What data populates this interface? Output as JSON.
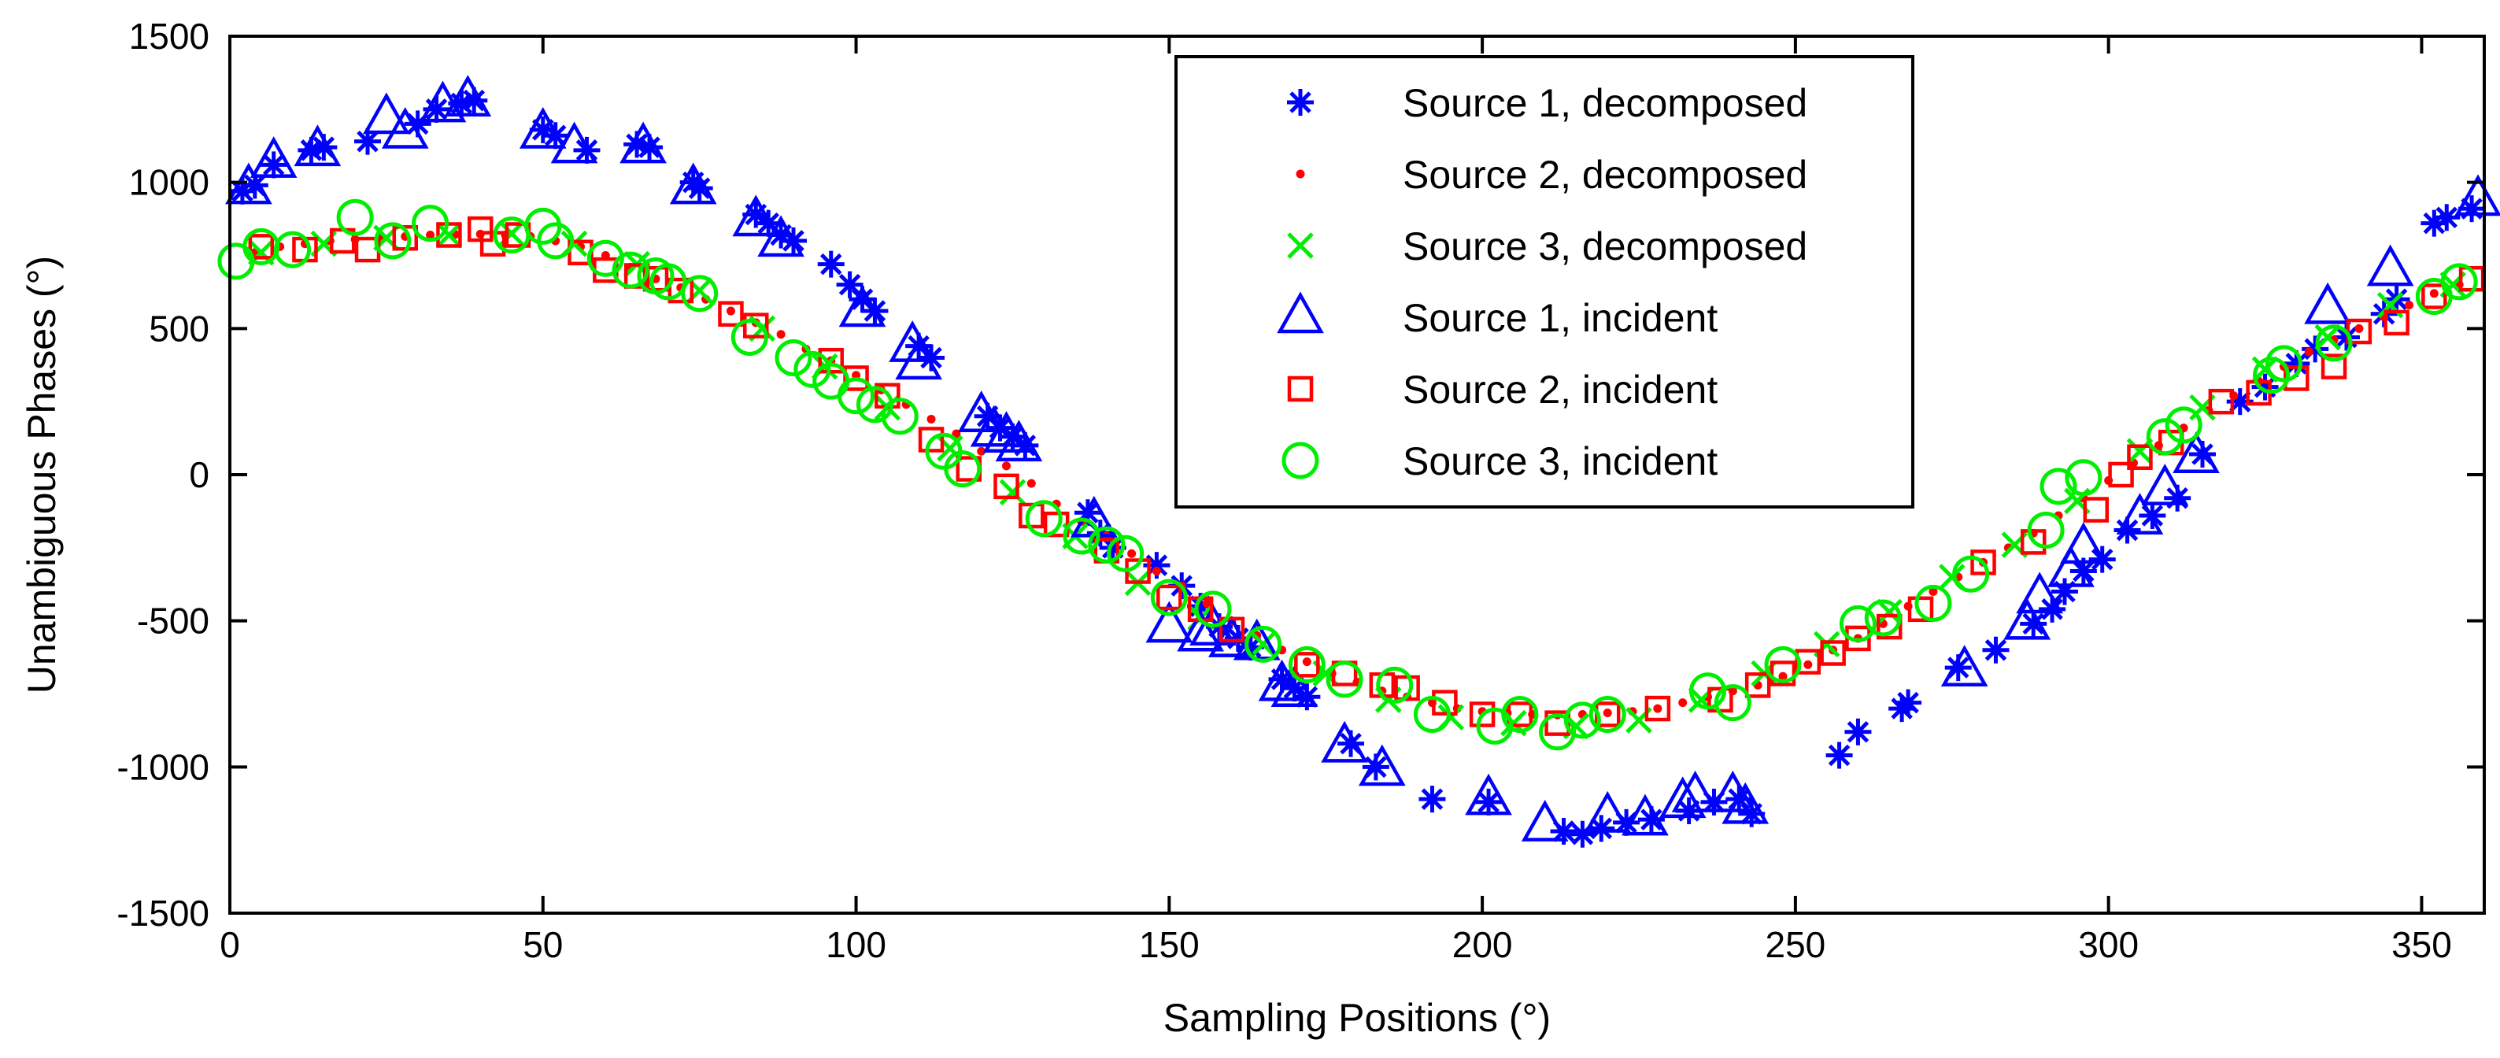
{
  "chart_data": {
    "type": "scatter",
    "title": "",
    "xlabel": "Sampling Positions (°)",
    "ylabel": "Unambiguous Phases (°)",
    "xlim": [
      0,
      360
    ],
    "ylim": [
      -1500,
      1500
    ],
    "xticks": [
      "0",
      "50",
      "100",
      "150",
      "200",
      "250",
      "300",
      "350"
    ],
    "yticks": [
      "1500",
      "1000",
      "500",
      "0",
      "-500",
      "-1000",
      "-1500"
    ],
    "grid": false,
    "legend_position": "top-center",
    "colors": {
      "source1": "#0000ff",
      "source2": "#ff0000",
      "source3": "#00ee00"
    },
    "series": [
      {
        "name": "Source 1, decomposed",
        "marker": "star",
        "color": "#0000ff",
        "x": [
          2,
          4,
          7,
          13,
          15,
          22,
          30,
          33,
          37,
          39,
          50,
          52,
          57,
          65,
          67,
          74,
          75,
          84,
          86,
          88,
          90,
          96,
          99,
          101,
          103,
          110,
          112,
          121,
          123,
          125,
          127,
          137,
          139,
          141,
          148,
          152,
          155,
          158,
          161,
          163,
          168,
          170,
          172,
          179,
          183,
          192,
          201,
          213,
          216,
          219,
          223,
          227,
          233,
          237,
          241,
          243,
          257,
          260,
          267,
          268,
          276,
          282,
          288,
          291,
          293,
          296,
          299,
          303,
          307,
          311,
          315,
          321,
          325,
          330,
          333,
          338,
          344,
          346,
          352,
          354,
          358
        ],
        "y": [
          970,
          990,
          1060,
          1110,
          1120,
          1140,
          1200,
          1250,
          1270,
          1280,
          1180,
          1160,
          1110,
          1130,
          1120,
          1000,
          980,
          890,
          860,
          820,
          800,
          720,
          650,
          600,
          560,
          440,
          400,
          200,
          160,
          130,
          100,
          -130,
          -200,
          -250,
          -310,
          -380,
          -450,
          -520,
          -560,
          -590,
          -700,
          -730,
          -760,
          -920,
          -1000,
          -1110,
          -1120,
          -1220,
          -1230,
          -1210,
          -1190,
          -1180,
          -1150,
          -1120,
          -1110,
          -1160,
          -960,
          -880,
          -800,
          -780,
          -660,
          -600,
          -510,
          -460,
          -400,
          -330,
          -290,
          -190,
          -140,
          -80,
          70,
          250,
          300,
          380,
          430,
          470,
          550,
          600,
          860,
          880,
          910
        ]
      },
      {
        "name": "Source 2, decomposed",
        "marker": "dot",
        "color": "#ff0000",
        "x": [
          4,
          8,
          12,
          16,
          20,
          24,
          28,
          32,
          36,
          40,
          44,
          48,
          52,
          56,
          60,
          64,
          68,
          72,
          76,
          80,
          84,
          88,
          92,
          96,
          100,
          104,
          108,
          112,
          116,
          120,
          124,
          128,
          132,
          136,
          140,
          144,
          148,
          152,
          156,
          160,
          164,
          168,
          172,
          176,
          180,
          184,
          188,
          192,
          196,
          200,
          204,
          208,
          212,
          216,
          220,
          224,
          228,
          232,
          236,
          240,
          244,
          248,
          252,
          256,
          260,
          264,
          268,
          272,
          276,
          280,
          284,
          288,
          292,
          296,
          300,
          304,
          308,
          312,
          316,
          320,
          324,
          328,
          332,
          336,
          340,
          344,
          348,
          352,
          356
        ],
        "y": [
          760,
          780,
          790,
          800,
          805,
          810,
          815,
          820,
          822,
          823,
          820,
          815,
          800,
          780,
          750,
          710,
          670,
          640,
          600,
          560,
          520,
          480,
          430,
          390,
          340,
          290,
          240,
          190,
          140,
          80,
          30,
          -30,
          -100,
          -160,
          -210,
          -270,
          -330,
          -380,
          -440,
          -500,
          -550,
          -600,
          -640,
          -680,
          -710,
          -740,
          -760,
          -780,
          -800,
          -810,
          -815,
          -820,
          -822,
          -820,
          -815,
          -810,
          -800,
          -780,
          -760,
          -740,
          -720,
          -690,
          -650,
          -600,
          -560,
          -510,
          -450,
          -400,
          -350,
          -300,
          -250,
          -200,
          -140,
          -80,
          -20,
          40,
          100,
          160,
          220,
          270,
          320,
          370,
          420,
          460,
          500,
          540,
          580,
          620,
          650
        ]
      },
      {
        "name": "Source 3, decomposed",
        "marker": "x",
        "color": "#00ee00",
        "x": [
          5,
          15,
          25,
          35,
          45,
          55,
          65,
          75,
          85,
          95,
          105,
          115,
          125,
          135,
          145,
          155,
          165,
          175,
          185,
          195,
          205,
          215,
          225,
          235,
          245,
          255,
          265,
          275,
          285,
          295,
          305,
          315,
          325,
          335,
          345,
          355
        ],
        "y": [
          760,
          790,
          810,
          820,
          825,
          790,
          720,
          630,
          500,
          370,
          230,
          90,
          -60,
          -210,
          -370,
          -490,
          -580,
          -680,
          -770,
          -830,
          -850,
          -860,
          -840,
          -770,
          -680,
          -580,
          -470,
          -350,
          -240,
          -90,
          80,
          230,
          360,
          470,
          580,
          650
        ]
      },
      {
        "name": "Source 1, incident",
        "marker": "triangle",
        "color": "#0000ff",
        "x": [
          3,
          7,
          14,
          25,
          28,
          34,
          38,
          50,
          55,
          66,
          74,
          84,
          88,
          101,
          109,
          110,
          120,
          122,
          124,
          126,
          138,
          150,
          155,
          157,
          160,
          164,
          168,
          170,
          178,
          184,
          201,
          210,
          220,
          226,
          232,
          234,
          240,
          242,
          277,
          287,
          289,
          294,
          296,
          305,
          309,
          314,
          335,
          345,
          359
        ],
        "y": [
          980,
          1070,
          1110,
          1220,
          1170,
          1260,
          1280,
          1170,
          1120,
          1120,
          980,
          870,
          800,
          560,
          440,
          380,
          200,
          150,
          130,
          100,
          -160,
          -520,
          -550,
          -530,
          -570,
          -580,
          -720,
          -740,
          -930,
          -1010,
          -1110,
          -1200,
          -1170,
          -1180,
          -1120,
          -1100,
          -1100,
          -1140,
          -670,
          -510,
          -420,
          -330,
          -250,
          -150,
          -50,
          60,
          570,
          700,
          940
        ]
      },
      {
        "name": "Source 2, incident",
        "marker": "square",
        "color": "#ff0000",
        "x": [
          5,
          12,
          18,
          22,
          28,
          35,
          40,
          42,
          46,
          56,
          60,
          65,
          68,
          72,
          80,
          84,
          96,
          100,
          105,
          112,
          118,
          124,
          128,
          132,
          140,
          145,
          150,
          155,
          160,
          172,
          178,
          184,
          188,
          194,
          200,
          206,
          212,
          220,
          228,
          238,
          244,
          248,
          252,
          256,
          260,
          265,
          270,
          280,
          288,
          298,
          302,
          305,
          310,
          318,
          324,
          330,
          336,
          340,
          346,
          352,
          358
        ],
        "y": [
          780,
          770,
          800,
          770,
          810,
          820,
          840,
          790,
          820,
          760,
          700,
          680,
          670,
          630,
          550,
          510,
          390,
          330,
          270,
          120,
          20,
          -40,
          -140,
          -170,
          -260,
          -330,
          -420,
          -460,
          -530,
          -650,
          -680,
          -720,
          -730,
          -780,
          -820,
          -820,
          -850,
          -820,
          -800,
          -770,
          -720,
          -680,
          -640,
          -610,
          -560,
          -520,
          -460,
          -300,
          -230,
          -120,
          0,
          60,
          110,
          250,
          280,
          330,
          370,
          490,
          520,
          610,
          670
        ]
      },
      {
        "name": "Source 3, incident",
        "marker": "circle",
        "color": "#00ee00",
        "x": [
          1,
          5,
          10,
          20,
          26,
          32,
          45,
          50,
          52,
          60,
          64,
          68,
          70,
          75,
          83,
          90,
          93,
          96,
          100,
          103,
          107,
          114,
          117,
          130,
          136,
          140,
          143,
          150,
          157,
          165,
          172,
          178,
          186,
          192,
          202,
          206,
          212,
          216,
          220,
          236,
          240,
          248,
          260,
          264,
          272,
          278,
          290,
          292,
          296,
          309,
          312,
          326,
          328,
          336,
          352,
          356
        ],
        "y": [
          730,
          780,
          770,
          880,
          800,
          860,
          820,
          850,
          800,
          740,
          700,
          680,
          660,
          620,
          470,
          400,
          360,
          320,
          270,
          240,
          200,
          80,
          20,
          -150,
          -210,
          -240,
          -270,
          -420,
          -460,
          -580,
          -650,
          -700,
          -720,
          -820,
          -860,
          -820,
          -880,
          -840,
          -820,
          -740,
          -780,
          -650,
          -510,
          -490,
          -440,
          -340,
          -190,
          -40,
          -10,
          130,
          170,
          340,
          380,
          450,
          610,
          660
        ]
      }
    ]
  }
}
